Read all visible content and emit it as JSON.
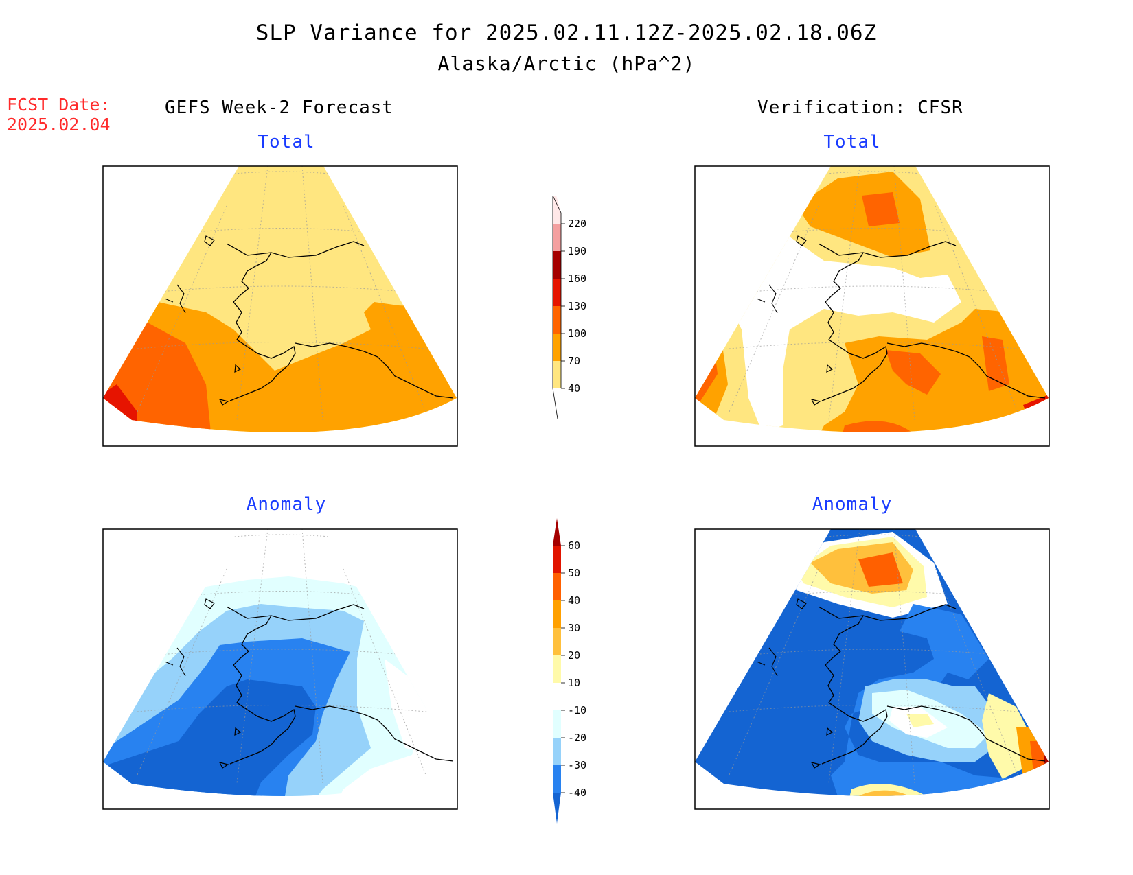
{
  "title": "SLP Variance for 2025.02.11.12Z-2025.02.18.06Z",
  "subtitle": "Alaska/Arctic (hPa^2)",
  "forecast_date": {
    "label": "FCST Date:",
    "value": "2025.02.04"
  },
  "columns": {
    "left": "GEFS Week-2 Forecast",
    "right": "Verification: CFSR"
  },
  "panels": {
    "top_left": "Total",
    "top_right": "Total",
    "bottom_left": "Anomaly",
    "bottom_right": "Anomaly"
  },
  "colorbars": {
    "total": {
      "ticks": [
        "40",
        "70",
        "100",
        "130",
        "160",
        "190",
        "220"
      ],
      "colors": [
        "#ffffff",
        "#ffe680",
        "#ffa200",
        "#ff6400",
        "#e61400",
        "#a50000",
        "#f4a0a0",
        "#ffe8e8"
      ]
    },
    "anomaly": {
      "ticks": [
        "-40",
        "-30",
        "-20",
        "-10",
        "10",
        "20",
        "30",
        "40",
        "50",
        "60"
      ],
      "colors": [
        "#1464d2",
        "#2882f0",
        "#96d2fa",
        "#e1ffff",
        "#ffffff",
        "#fffaaa",
        "#ffc03c",
        "#ffa000",
        "#ff6000",
        "#e11400",
        "#a50000"
      ]
    }
  }
}
